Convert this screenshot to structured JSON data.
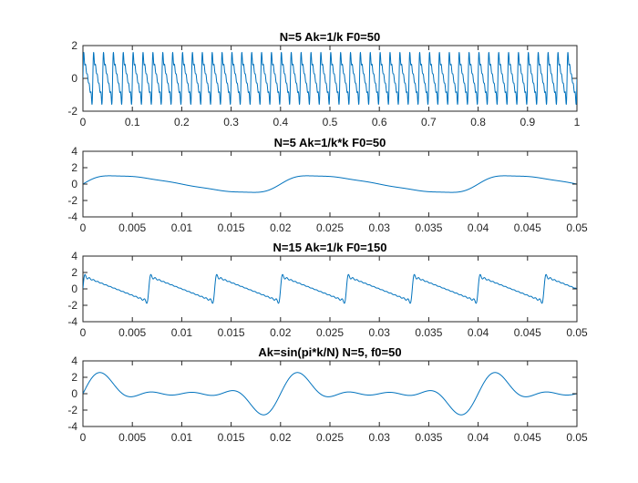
{
  "figure": {
    "background": "#ffffff",
    "line_color": "#0072BD",
    "axis_color": "#262626"
  },
  "chart_data": [
    {
      "type": "line",
      "title": "N=5 Ak=1/k F0=50",
      "xlabel": "",
      "ylabel": "",
      "xlim": [
        0,
        1
      ],
      "ylim": [
        -2,
        2
      ],
      "xticks": [
        0,
        0.1,
        0.2,
        0.3,
        0.4,
        0.5,
        0.6,
        0.7,
        0.8,
        0.9,
        1
      ],
      "xtick_labels": [
        "0",
        "0.1",
        "0.2",
        "0.3",
        "0.4",
        "0.5",
        "0.6",
        "0.7",
        "0.8",
        "0.9",
        "1"
      ],
      "yticks": [
        -2,
        0,
        2
      ],
      "ytick_labels": [
        "-2",
        "0",
        "2"
      ],
      "grid": false,
      "series": [
        {
          "N": 5,
          "f0": 50,
          "amplitude_rule": "1/k"
        }
      ]
    },
    {
      "type": "line",
      "title": "N=5 Ak=1/k*k F0=50",
      "xlabel": "",
      "ylabel": "",
      "xlim": [
        0,
        0.05
      ],
      "ylim": [
        -4,
        4
      ],
      "xticks": [
        0,
        0.005,
        0.01,
        0.015,
        0.02,
        0.025,
        0.03,
        0.035,
        0.04,
        0.045,
        0.05
      ],
      "xtick_labels": [
        "0",
        "0.005",
        "0.01",
        "0.015",
        "0.02",
        "0.025",
        "0.03",
        "0.035",
        "0.04",
        "0.045",
        "0.05"
      ],
      "yticks": [
        -4,
        -2,
        0,
        2,
        4
      ],
      "ytick_labels": [
        "-4",
        "-2",
        "0",
        "2",
        "4"
      ],
      "grid": false,
      "series": [
        {
          "N": 5,
          "f0": 50,
          "amplitude_rule": "1/k^2"
        }
      ]
    },
    {
      "type": "line",
      "title": "N=15 Ak=1/k F0=150",
      "xlabel": "",
      "ylabel": "",
      "xlim": [
        0,
        0.05
      ],
      "ylim": [
        -4,
        4
      ],
      "xticks": [
        0,
        0.005,
        0.01,
        0.015,
        0.02,
        0.025,
        0.03,
        0.035,
        0.04,
        0.045,
        0.05
      ],
      "xtick_labels": [
        "0",
        "0.005",
        "0.01",
        "0.015",
        "0.02",
        "0.025",
        "0.03",
        "0.035",
        "0.04",
        "0.045",
        "0.05"
      ],
      "yticks": [
        -4,
        -2,
        0,
        2,
        4
      ],
      "ytick_labels": [
        "-4",
        "-2",
        "0",
        "2",
        "4"
      ],
      "grid": false,
      "series": [
        {
          "N": 15,
          "f0": 150,
          "amplitude_rule": "1/k"
        }
      ]
    },
    {
      "type": "line",
      "title": "Ak=sin(pi*k/N) N=5, f0=50",
      "xlabel": "",
      "ylabel": "",
      "xlim": [
        0,
        0.05
      ],
      "ylim": [
        -4,
        4
      ],
      "xticks": [
        0,
        0.005,
        0.01,
        0.015,
        0.02,
        0.025,
        0.03,
        0.035,
        0.04,
        0.045,
        0.05
      ],
      "xtick_labels": [
        "0",
        "0.005",
        "0.01",
        "0.015",
        "0.02",
        "0.025",
        "0.03",
        "0.035",
        "0.04",
        "0.045",
        "0.05"
      ],
      "yticks": [
        -4,
        -2,
        0,
        2,
        4
      ],
      "ytick_labels": [
        "-4",
        "-2",
        "0",
        "2",
        "4"
      ],
      "grid": false,
      "series": [
        {
          "N": 5,
          "f0": 50,
          "amplitude_rule": "sin(pi*k/N)"
        }
      ]
    }
  ]
}
